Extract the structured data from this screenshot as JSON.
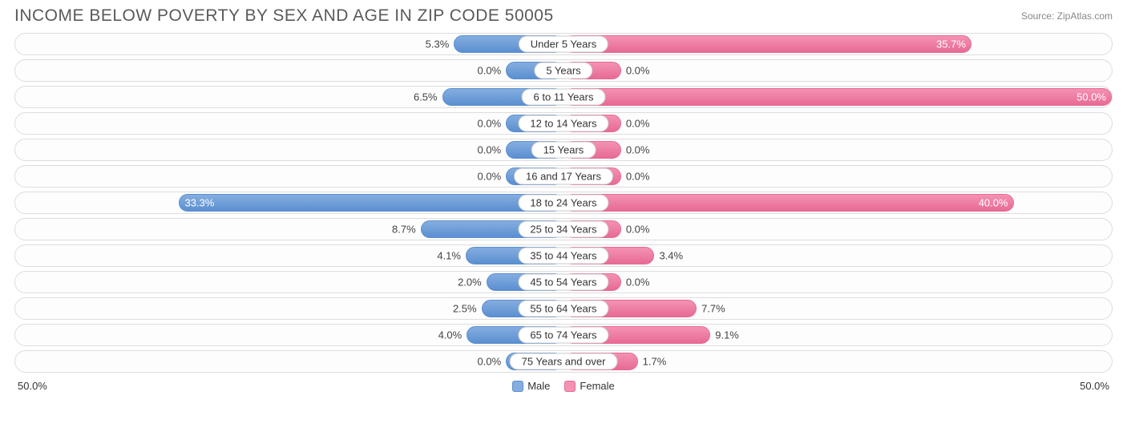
{
  "title": "INCOME BELOW POVERTY BY SEX AND AGE IN ZIP CODE 50005",
  "source": "Source: ZipAtlas.com",
  "axis_max": 50.0,
  "axis_label_left": "50.0%",
  "axis_label_right": "50.0%",
  "male_bar_base_width": 10.5,
  "female_bar_base_width": 10.5,
  "colors": {
    "male_fill": "#85aee0",
    "male_border": "#5b8fd0",
    "female_fill": "#f492b2",
    "female_border": "#e76a95",
    "row_border": "#dddddd",
    "row_bg": "#fdfdfd",
    "text": "#444444",
    "title": "#5a5a5a",
    "source": "#888888",
    "pill_border": "#cccccc",
    "pill_bg": "#ffffff"
  },
  "legend": {
    "male": "Male",
    "female": "Female"
  },
  "rows": [
    {
      "age": "Under 5 Years",
      "male": 5.3,
      "male_label": "5.3%",
      "female": 35.7,
      "female_label": "35.7%"
    },
    {
      "age": "5 Years",
      "male": 0.0,
      "male_label": "0.0%",
      "female": 0.0,
      "female_label": "0.0%"
    },
    {
      "age": "6 to 11 Years",
      "male": 6.5,
      "male_label": "6.5%",
      "female": 50.0,
      "female_label": "50.0%"
    },
    {
      "age": "12 to 14 Years",
      "male": 0.0,
      "male_label": "0.0%",
      "female": 0.0,
      "female_label": "0.0%"
    },
    {
      "age": "15 Years",
      "male": 0.0,
      "male_label": "0.0%",
      "female": 0.0,
      "female_label": "0.0%"
    },
    {
      "age": "16 and 17 Years",
      "male": 0.0,
      "male_label": "0.0%",
      "female": 0.0,
      "female_label": "0.0%"
    },
    {
      "age": "18 to 24 Years",
      "male": 33.3,
      "male_label": "33.3%",
      "female": 40.0,
      "female_label": "40.0%"
    },
    {
      "age": "25 to 34 Years",
      "male": 8.7,
      "male_label": "8.7%",
      "female": 0.0,
      "female_label": "0.0%"
    },
    {
      "age": "35 to 44 Years",
      "male": 4.1,
      "male_label": "4.1%",
      "female": 3.4,
      "female_label": "3.4%"
    },
    {
      "age": "45 to 54 Years",
      "male": 2.0,
      "male_label": "2.0%",
      "female": 0.0,
      "female_label": "0.0%"
    },
    {
      "age": "55 to 64 Years",
      "male": 2.5,
      "male_label": "2.5%",
      "female": 7.7,
      "female_label": "7.7%"
    },
    {
      "age": "65 to 74 Years",
      "male": 4.0,
      "male_label": "4.0%",
      "female": 9.1,
      "female_label": "9.1%"
    },
    {
      "age": "75 Years and over",
      "male": 0.0,
      "male_label": "0.0%",
      "female": 1.7,
      "female_label": "1.7%"
    }
  ]
}
